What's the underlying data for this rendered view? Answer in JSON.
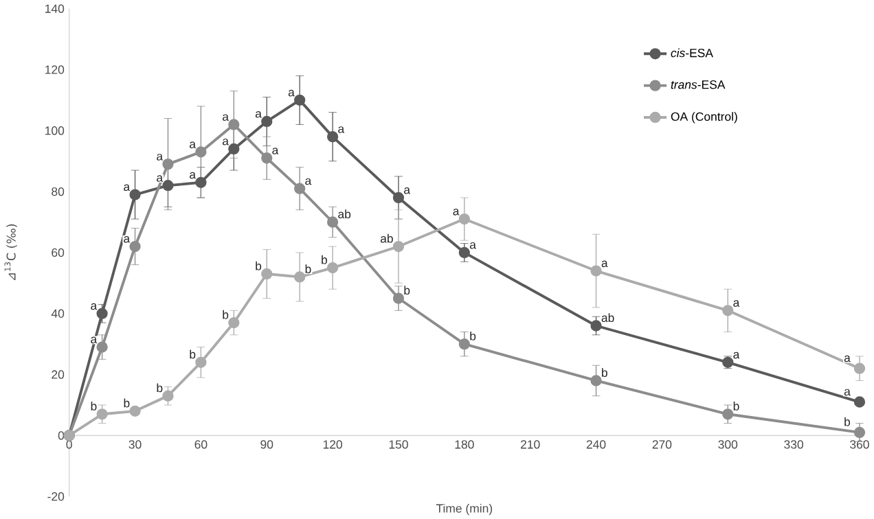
{
  "chart_data": {
    "type": "line",
    "xlabel": "Time (min)",
    "ylabel": "⊿$^{13}$C (‰)",
    "x": [
      0,
      15,
      30,
      45,
      60,
      75,
      90,
      105,
      120,
      150,
      180,
      240,
      300,
      360
    ],
    "series": [
      {
        "name": "*cis*-ESA",
        "color": "#5a5a5a",
        "values": [
          0,
          40,
          79,
          82,
          83,
          94,
          103,
          110,
          98,
          78,
          60,
          36,
          24,
          11
        ],
        "errors": [
          0,
          3,
          8,
          7,
          5,
          7,
          8,
          8,
          8,
          7,
          3,
          3,
          2,
          1
        ]
      },
      {
        "name": "*trans*-ESA",
        "color": "#8c8c8c",
        "values": [
          0,
          29,
          62,
          89,
          93,
          102,
          91,
          81,
          70,
          45,
          30,
          18,
          7,
          1
        ],
        "errors": [
          0,
          4,
          6,
          15,
          15,
          11,
          7,
          7,
          5,
          4,
          4,
          5,
          3,
          3
        ]
      },
      {
        "name": "OA (Control)",
        "color": "#ababab",
        "values": [
          0,
          7,
          8,
          13,
          24,
          37,
          53,
          52,
          55,
          62,
          71,
          54,
          41,
          22
        ],
        "errors": [
          0,
          3,
          1,
          3,
          5,
          4,
          8,
          8,
          7,
          12,
          7,
          12,
          7,
          4
        ]
      }
    ],
    "xlim": [
      0,
      360
    ],
    "xticks": [
      0,
      30,
      60,
      90,
      120,
      150,
      180,
      210,
      240,
      270,
      300,
      330,
      360
    ],
    "ylim": [
      -20,
      140
    ],
    "yticks": [
      -20,
      0,
      20,
      40,
      60,
      80,
      100,
      120,
      140
    ],
    "marker": "circle",
    "line_style": "solid",
    "legend": "top right",
    "annotations": [
      {
        "text": "a",
        "x": 15,
        "y": 40
      },
      {
        "text": "a",
        "x": 15,
        "y": 29
      },
      {
        "text": "b",
        "x": 15,
        "y": 7
      },
      {
        "text": "b",
        "x": 30,
        "y": 8
      },
      {
        "text": "a",
        "x": 30,
        "y": 79
      },
      {
        "text": "a",
        "x": 30,
        "y": 62
      },
      {
        "text": "b",
        "x": 45,
        "y": 13
      },
      {
        "text": "a",
        "x": 45,
        "y": 89
      },
      {
        "text": "a",
        "x": 45,
        "y": 82
      },
      {
        "text": "a",
        "x": 60,
        "y": 83
      },
      {
        "text": "a",
        "x": 60,
        "y": 93
      },
      {
        "text": "b",
        "x": 60,
        "y": 24
      },
      {
        "text": "a",
        "x": 75,
        "y": 94
      },
      {
        "text": "a",
        "x": 75,
        "y": 102
      },
      {
        "text": "b",
        "x": 75,
        "y": 37
      },
      {
        "text": "a",
        "x": 90,
        "y": 103
      },
      {
        "text": "a",
        "x": 90,
        "y": 91
      },
      {
        "text": "b",
        "x": 90,
        "y": 53
      },
      {
        "text": "a",
        "x": 105,
        "y": 110
      },
      {
        "text": "a",
        "x": 105,
        "y": 81
      },
      {
        "text": "b",
        "x": 105,
        "y": 52
      },
      {
        "text": "b",
        "x": 120,
        "y": 55
      },
      {
        "text": "a",
        "x": 120,
        "y": 98
      },
      {
        "text": "ab",
        "x": 120,
        "y": 70
      },
      {
        "text": "a",
        "x": 150,
        "y": 78
      },
      {
        "text": "ab",
        "x": 150,
        "y": 62
      },
      {
        "text": "b",
        "x": 150,
        "y": 45
      },
      {
        "text": "a",
        "x": 180,
        "y": 71
      },
      {
        "text": "a",
        "x": 180,
        "y": 60
      },
      {
        "text": "b",
        "x": 180,
        "y": 30
      },
      {
        "text": "a",
        "x": 240,
        "y": 54
      },
      {
        "text": "ab",
        "x": 240,
        "y": 36
      },
      {
        "text": "b",
        "x": 240,
        "y": 18
      },
      {
        "text": "a",
        "x": 300,
        "y": 41
      },
      {
        "text": "a",
        "x": 300,
        "y": 24
      },
      {
        "text": "b",
        "x": 300,
        "y": 7
      },
      {
        "text": "a",
        "x": 360,
        "y": 22
      },
      {
        "text": "a",
        "x": 360,
        "y": 11
      },
      {
        "text": "b",
        "x": 360,
        "y": 1
      }
    ]
  }
}
